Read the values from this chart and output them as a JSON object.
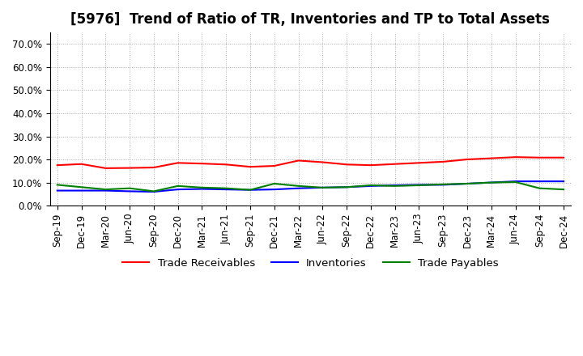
{
  "title": "[5976]  Trend of Ratio of TR, Inventories and TP to Total Assets",
  "x_labels": [
    "Sep-19",
    "Dec-19",
    "Mar-20",
    "Jun-20",
    "Sep-20",
    "Dec-20",
    "Mar-21",
    "Jun-21",
    "Sep-21",
    "Dec-21",
    "Mar-22",
    "Jun-22",
    "Sep-22",
    "Dec-22",
    "Mar-23",
    "Jun-23",
    "Sep-23",
    "Dec-23",
    "Mar-24",
    "Jun-24",
    "Sep-24",
    "Dec-24"
  ],
  "trade_receivables": [
    17.5,
    18.0,
    16.2,
    16.3,
    16.5,
    18.5,
    18.2,
    17.8,
    16.8,
    17.2,
    19.5,
    18.8,
    17.8,
    17.5,
    18.0,
    18.5,
    19.0,
    20.0,
    20.5,
    21.0,
    20.8,
    20.8
  ],
  "inventories": [
    6.5,
    6.5,
    6.5,
    6.2,
    6.0,
    7.0,
    7.2,
    7.0,
    6.8,
    7.0,
    7.5,
    7.8,
    8.0,
    8.5,
    8.8,
    9.0,
    9.0,
    9.5,
    10.0,
    10.5,
    10.5,
    10.5
  ],
  "trade_payables": [
    9.0,
    8.0,
    7.0,
    7.5,
    6.2,
    8.5,
    7.8,
    7.5,
    6.8,
    9.5,
    8.5,
    7.8,
    8.0,
    8.8,
    8.5,
    8.8,
    9.2,
    9.5,
    10.0,
    10.2,
    7.5,
    7.0
  ],
  "ylim": [
    0,
    75
  ],
  "yticks": [
    0,
    10,
    20,
    30,
    40,
    50,
    60,
    70
  ],
  "ytick_labels": [
    "0.0%",
    "10.0%",
    "20.0%",
    "30.0%",
    "40.0%",
    "50.0%",
    "60.0%",
    "70.0%"
  ],
  "tr_color": "#ff0000",
  "inv_color": "#0000ff",
  "tp_color": "#008000",
  "legend_labels": [
    "Trade Receivables",
    "Inventories",
    "Trade Payables"
  ],
  "background_color": "#ffffff",
  "plot_bg_color": "#ffffff",
  "grid_color": "#aaaaaa",
  "title_fontsize": 12,
  "axis_fontsize": 8.5,
  "legend_fontsize": 9.5
}
